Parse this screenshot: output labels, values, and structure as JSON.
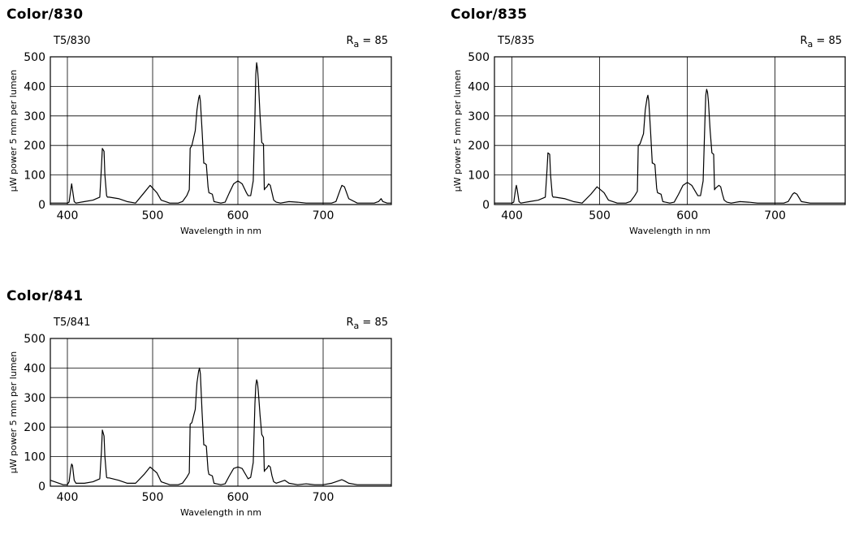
{
  "chart_data": [
    {
      "type": "line",
      "title": "Color/830",
      "subtitle": "T5/830",
      "annotation": {
        "prefix": "R",
        "subscript": "a",
        "suffix": " = 85"
      },
      "xlabel": "Wavelength in nm",
      "ylabel": "µW power 5 mm per lumen",
      "xlim": [
        380,
        780
      ],
      "ylim": [
        0,
        500
      ],
      "xticks": [
        400,
        500,
        600,
        700
      ],
      "yticks": [
        0,
        100,
        200,
        300,
        400,
        500
      ],
      "grid": true,
      "series": [
        {
          "x": [
            380,
            395,
            400,
            402,
            404,
            405,
            406,
            408,
            410,
            420,
            430,
            438,
            440,
            441,
            443,
            444,
            446,
            447,
            449,
            460,
            470,
            480,
            490,
            497,
            505,
            510,
            520,
            530,
            535,
            540,
            543,
            544,
            546,
            550,
            552,
            554,
            555,
            556,
            558,
            560,
            561,
            563,
            565,
            566,
            570,
            572,
            575,
            580,
            585,
            590,
            595,
            600,
            605,
            610,
            612,
            615,
            618,
            620,
            621,
            622,
            623,
            624,
            626,
            628,
            630,
            631,
            632,
            634,
            636,
            638,
            640,
            642,
            645,
            650,
            660,
            670,
            680,
            690,
            700,
            710,
            715,
            720,
            722,
            725,
            730,
            740,
            760,
            765,
            768,
            770,
            775,
            780
          ],
          "y": [
            5,
            5,
            5,
            8,
            50,
            70,
            50,
            10,
            5,
            10,
            15,
            25,
            130,
            190,
            180,
            100,
            30,
            25,
            25,
            20,
            10,
            5,
            40,
            65,
            40,
            15,
            5,
            5,
            10,
            30,
            50,
            190,
            200,
            250,
            320,
            360,
            370,
            350,
            250,
            140,
            140,
            135,
            60,
            40,
            35,
            10,
            8,
            5,
            8,
            40,
            70,
            80,
            70,
            40,
            30,
            30,
            80,
            300,
            440,
            480,
            460,
            420,
            300,
            210,
            205,
            50,
            55,
            60,
            70,
            65,
            40,
            15,
            8,
            5,
            10,
            8,
            5,
            5,
            5,
            5,
            10,
            50,
            65,
            60,
            20,
            5,
            5,
            10,
            20,
            10,
            5,
            5
          ],
          "values": [
            5,
            5,
            5,
            8,
            50,
            70,
            50,
            10,
            5,
            10,
            15,
            25,
            130,
            190,
            180,
            100,
            30,
            25,
            25,
            20,
            10,
            5,
            40,
            65,
            40,
            15,
            5,
            5,
            10,
            30,
            50,
            190,
            200,
            250,
            320,
            360,
            370,
            350,
            250,
            140,
            140,
            135,
            60,
            40,
            35,
            10,
            8,
            5,
            8,
            40,
            70,
            80,
            70,
            40,
            30,
            30,
            80,
            300,
            440,
            480,
            460,
            420,
            300,
            210,
            205,
            50,
            55,
            60,
            70,
            65,
            40,
            15,
            8,
            5,
            10,
            8,
            5,
            5,
            5,
            5,
            10,
            50,
            65,
            60,
            20,
            5,
            5,
            10,
            20,
            10,
            5,
            5
          ]
        }
      ]
    },
    {
      "type": "line",
      "title": "Color/835",
      "subtitle": "T5/835",
      "annotation": {
        "prefix": "R",
        "subscript": "a",
        "suffix": " = 85"
      },
      "xlabel": "Wavelength in nm",
      "ylabel": "µW power 5 mm per lumen",
      "xlim": [
        380,
        780
      ],
      "ylim": [
        0,
        500
      ],
      "xticks": [
        400,
        500,
        600,
        700
      ],
      "yticks": [
        0,
        100,
        200,
        300,
        400,
        500
      ],
      "grid": true,
      "series": [
        {
          "x": [
            380,
            395,
            400,
            402,
            404,
            405,
            406,
            408,
            410,
            420,
            430,
            438,
            440,
            441,
            443,
            444,
            446,
            447,
            449,
            460,
            470,
            480,
            490,
            497,
            505,
            510,
            520,
            530,
            535,
            540,
            543,
            544,
            546,
            550,
            552,
            554,
            555,
            556,
            558,
            560,
            561,
            563,
            565,
            566,
            570,
            572,
            575,
            580,
            585,
            590,
            595,
            600,
            605,
            610,
            612,
            615,
            618,
            620,
            621,
            622,
            623,
            624,
            626,
            628,
            630,
            631,
            632,
            634,
            636,
            638,
            640,
            642,
            645,
            650,
            660,
            670,
            680,
            690,
            700,
            710,
            715,
            720,
            722,
            725,
            730,
            740,
            760,
            780
          ],
          "y": [
            5,
            5,
            5,
            8,
            50,
            65,
            50,
            10,
            5,
            10,
            15,
            25,
            120,
            175,
            170,
            100,
            30,
            25,
            25,
            20,
            10,
            5,
            35,
            60,
            40,
            15,
            5,
            5,
            10,
            30,
            45,
            200,
            205,
            240,
            320,
            360,
            370,
            350,
            250,
            140,
            140,
            135,
            55,
            40,
            35,
            10,
            8,
            5,
            8,
            35,
            65,
            75,
            65,
            40,
            30,
            30,
            80,
            280,
            370,
            390,
            380,
            350,
            250,
            175,
            170,
            50,
            55,
            60,
            65,
            60,
            35,
            15,
            8,
            5,
            10,
            8,
            5,
            5,
            5,
            5,
            10,
            35,
            40,
            35,
            10,
            5,
            5,
            5
          ],
          "values": [
            5,
            5,
            5,
            8,
            50,
            65,
            50,
            10,
            5,
            10,
            15,
            25,
            120,
            175,
            170,
            100,
            30,
            25,
            25,
            20,
            10,
            5,
            35,
            60,
            40,
            15,
            5,
            5,
            10,
            30,
            45,
            200,
            205,
            240,
            320,
            360,
            370,
            350,
            250,
            140,
            140,
            135,
            55,
            40,
            35,
            10,
            8,
            5,
            8,
            35,
            65,
            75,
            65,
            40,
            30,
            30,
            80,
            280,
            370,
            390,
            380,
            350,
            250,
            175,
            170,
            50,
            55,
            60,
            65,
            60,
            35,
            15,
            8,
            5,
            10,
            8,
            5,
            5,
            5,
            5,
            10,
            35,
            40,
            35,
            10,
            5,
            5,
            5
          ]
        }
      ]
    },
    {
      "type": "line",
      "title": "Color/841",
      "subtitle": "T5/841",
      "annotation": {
        "prefix": "R",
        "subscript": "a",
        "suffix": " = 85"
      },
      "xlabel": "Wavelength in nm",
      "ylabel": "µW power 5 mm per lumen",
      "xlim": [
        380,
        780
      ],
      "ylim": [
        0,
        500
      ],
      "xticks": [
        400,
        500,
        600,
        700
      ],
      "yticks": [
        0,
        100,
        200,
        300,
        400,
        500
      ],
      "grid": true,
      "series": [
        {
          "x": [
            380,
            395,
            400,
            402,
            404,
            405,
            406,
            408,
            410,
            420,
            430,
            438,
            440,
            441,
            443,
            444,
            446,
            447,
            449,
            460,
            470,
            480,
            490,
            497,
            505,
            510,
            520,
            530,
            535,
            540,
            543,
            544,
            546,
            550,
            552,
            554,
            555,
            556,
            558,
            560,
            561,
            563,
            565,
            566,
            570,
            572,
            575,
            580,
            585,
            590,
            595,
            600,
            605,
            610,
            612,
            615,
            618,
            620,
            621,
            622,
            623,
            624,
            626,
            628,
            630,
            631,
            632,
            634,
            636,
            638,
            640,
            642,
            645,
            650,
            655,
            660,
            670,
            680,
            690,
            700,
            710,
            715,
            720,
            722,
            725,
            730,
            740,
            760,
            780
          ],
          "y": [
            20,
            5,
            5,
            15,
            60,
            75,
            70,
            20,
            10,
            10,
            15,
            25,
            120,
            190,
            170,
            100,
            30,
            28,
            28,
            20,
            10,
            10,
            40,
            65,
            45,
            15,
            5,
            5,
            10,
            30,
            45,
            210,
            215,
            260,
            350,
            390,
            400,
            380,
            250,
            140,
            140,
            135,
            55,
            40,
            35,
            10,
            8,
            5,
            8,
            35,
            60,
            65,
            60,
            35,
            25,
            30,
            80,
            280,
            340,
            360,
            350,
            320,
            240,
            175,
            165,
            50,
            55,
            60,
            70,
            65,
            35,
            15,
            10,
            15,
            20,
            10,
            5,
            8,
            5,
            5,
            10,
            15,
            20,
            22,
            18,
            10,
            5,
            5,
            5
          ],
          "values": [
            20,
            5,
            5,
            15,
            60,
            75,
            70,
            20,
            10,
            10,
            15,
            25,
            120,
            190,
            170,
            100,
            30,
            28,
            28,
            20,
            10,
            10,
            40,
            65,
            45,
            15,
            5,
            5,
            10,
            30,
            45,
            210,
            215,
            260,
            350,
            390,
            400,
            380,
            250,
            140,
            140,
            135,
            55,
            40,
            35,
            10,
            8,
            5,
            8,
            35,
            60,
            65,
            60,
            35,
            25,
            30,
            80,
            280,
            340,
            360,
            350,
            320,
            240,
            175,
            165,
            50,
            55,
            60,
            70,
            65,
            35,
            15,
            10,
            15,
            20,
            10,
            5,
            8,
            5,
            5,
            10,
            15,
            20,
            22,
            18,
            10,
            5,
            5,
            5
          ]
        }
      ]
    }
  ]
}
